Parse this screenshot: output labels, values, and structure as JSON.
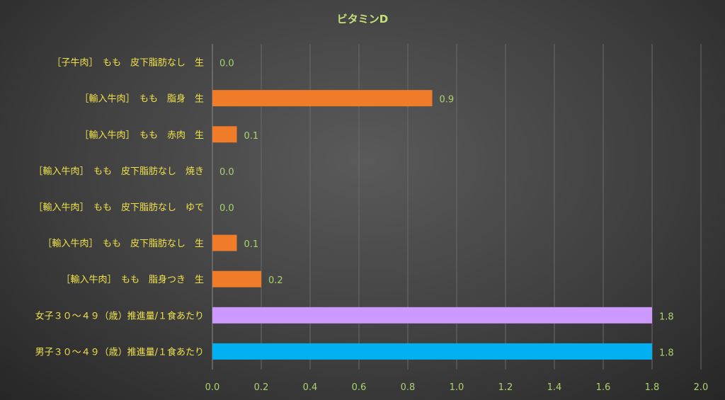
{
  "chart_data": {
    "type": "bar",
    "orientation": "horizontal",
    "title": "ビタミンD",
    "categories": [
      "［子牛肉］　もも　皮下脂肪なし　生",
      "［輸入牛肉］　もも　脂身　生",
      "［輸入牛肉］　もも　赤肉　生",
      "［輸入牛肉］　もも　皮下脂肪なし　焼き",
      "［輸入牛肉］　もも　皮下脂肪なし　ゆで",
      "［輸入牛肉］　もも　皮下脂肪なし　生",
      "［輸入牛肉］　もも　脂身つき　生",
      "女子３０～４９（歳）推進量/１食あたり",
      "男子３０～４９（歳）推進量/１食あたり"
    ],
    "values": [
      0.0,
      0.9,
      0.1,
      0.0,
      0.0,
      0.1,
      0.2,
      1.8,
      1.8
    ],
    "data_labels": [
      "0.0",
      "0.9",
      "0.1",
      "0.0",
      "0.0",
      "0.1",
      "0.2",
      "1.8",
      "1.8"
    ],
    "bar_colors": [
      "#f07c2a",
      "#f07c2a",
      "#f07c2a",
      "#f07c2a",
      "#f07c2a",
      "#f07c2a",
      "#f07c2a",
      "#cc99ff",
      "#00b0f0"
    ],
    "xlim": [
      0,
      2.0
    ],
    "x_ticks": [
      "0.0",
      "0.2",
      "0.4",
      "0.6",
      "0.8",
      "1.0",
      "1.2",
      "1.4",
      "1.6",
      "1.8",
      "2.0"
    ],
    "grid": true,
    "legend": "none"
  }
}
